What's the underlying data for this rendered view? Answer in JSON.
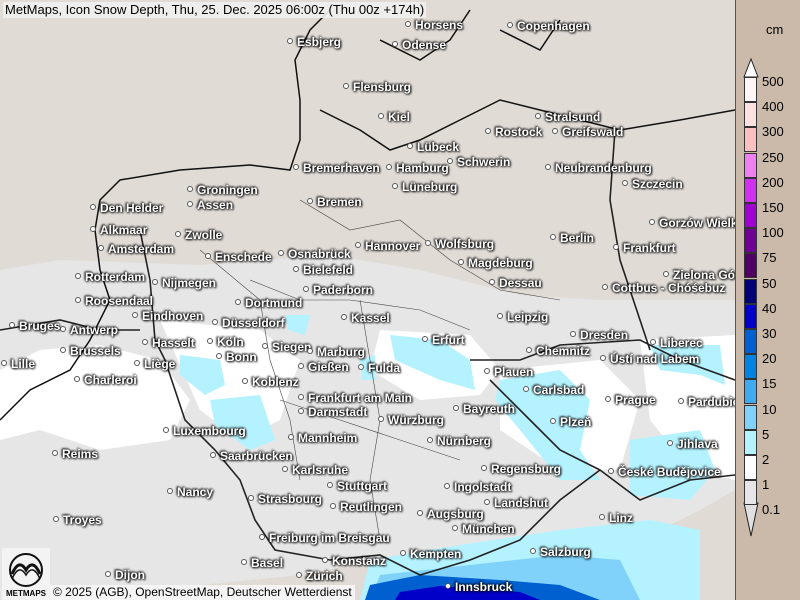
{
  "title": "MetMaps, Icon Snow Depth, Thu, 25. Dec. 2025 06:00z (Thu 00z +174h)",
  "credit": "© 2025 (AGB), OpenStreetMap, Deutscher Wetterdienst",
  "logo_text": "METMAPS",
  "legend": {
    "unit": "cm",
    "labels": [
      "500",
      "400",
      "300",
      "250",
      "200",
      "150",
      "100",
      "75",
      "50",
      "40",
      "30",
      "20",
      "15",
      "10",
      "5",
      "2",
      "1",
      "0.1"
    ],
    "colors": [
      "#fff6f6",
      "#fde0e0",
      "#fcc0c0",
      "#f080f0",
      "#d030f0",
      "#a000d0",
      "#700094",
      "#520064",
      "#000078",
      "#0000c8",
      "#0060d0",
      "#0082e2",
      "#40aaf0",
      "#80d2fa",
      "#b4f2ff",
      "#ffffff",
      "#e6e6e6"
    ],
    "over_color": "#ffffff",
    "under_color": "#e0e0e0"
  },
  "colors": {
    "land": "#e1dbd6",
    "snow_trace": "#e6e6e6",
    "snow_1cm": "#ffffff",
    "snow_2cm": "#b4f2ff",
    "snow_5cm": "#80d2fa",
    "snow_20cm": "#0060d0",
    "snow_40cm": "#0000c8"
  },
  "cities": [
    "Horsens",
    "Copenhagen",
    "Esbjerg",
    "Odense",
    "Flensburg",
    "Kiel",
    "Stralsund",
    "Rostock",
    "Greifswald",
    "Lübeck",
    "Schwerin",
    "Neubrandenburg",
    "Szczecin",
    "Bremerhaven",
    "Hamburg",
    "Lüneburg",
    "Bremen",
    "Groningen",
    "Assen",
    "Den Helder",
    "Alkmaar",
    "Zwolle",
    "Amsterdam",
    "Enschede",
    "Osnabrück",
    "Hannover",
    "Wolfsburg",
    "Berlin",
    "Gorzów Wielkopolski",
    "Frankfurt",
    "Bielefeld",
    "Magdeburg",
    "Zielona Góra",
    "Rotterdam",
    "Nijmegen",
    "Dessau",
    "Cottbus - Chóśebuz",
    "Paderborn",
    "Roosendaal",
    "Eindhoven",
    "Dortmund",
    "Bruges",
    "Antwerp",
    "Düsseldorf",
    "Kassel",
    "Leipzig",
    "Dresden",
    "Erfurt",
    "Hasselt",
    "Brussels",
    "Köln",
    "Bonn",
    "Siegen",
    "Marburg",
    "Chemnitz",
    "Ústí nad Labem",
    "Liberec",
    "Lille",
    "Liège",
    "Gießen",
    "Fulda",
    "Plauen",
    "Koblenz",
    "Charleroi",
    "Carlsbad",
    "Frankfurt am Main",
    "Prague",
    "Pardubice",
    "Darmstadt",
    "Würzburg",
    "Bayreuth",
    "Plzeň",
    "Luxembourg",
    "Mannheim",
    "Nürnberg",
    "Jihlava",
    "Reims",
    "Saarbrücken",
    "Karlsruhe",
    "Regensburg",
    "České Budějovice",
    "Stuttgart",
    "Ingolstadt",
    "Nancy",
    "Landshut",
    "Strasbourg",
    "Reutlingen",
    "Augsburg",
    "Troyes",
    "Linz",
    "München",
    "Freiburg im Breisgau",
    "Salzburg",
    "Konstanz",
    "Kempten",
    "Basel",
    "Zürich",
    "Dijon",
    "Innsbruck"
  ]
}
